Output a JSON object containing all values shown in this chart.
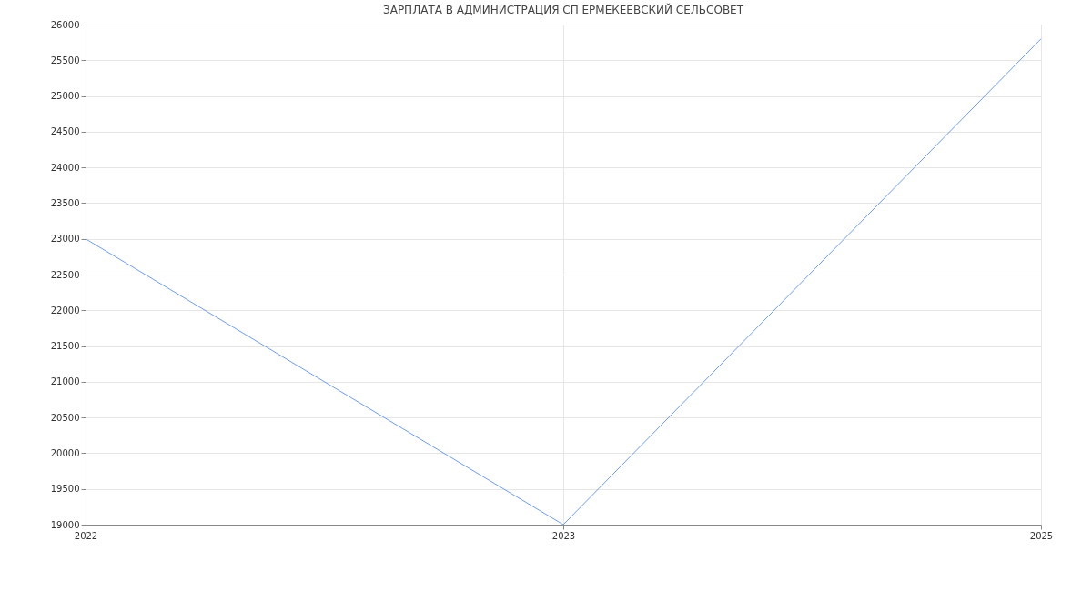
{
  "chart_data": {
    "type": "line",
    "title": "ЗАРПЛАТА В АДМИНИСТРАЦИЯ СП ЕРМЕКЕЕВСКИЙ СЕЛЬСОВЕТ",
    "categories": [
      "2022",
      "2023",
      "2025"
    ],
    "series": [
      {
        "color": "#6d9eeb",
        "values": [
          23000,
          19000,
          25800
        ]
      }
    ],
    "ylim": [
      19000,
      26000
    ],
    "yticks": [
      19000,
      19500,
      20000,
      20500,
      21000,
      21500,
      22000,
      22500,
      23000,
      23500,
      24000,
      24500,
      25000,
      25500,
      26000
    ],
    "grid": true,
    "marker": "none",
    "line_style": "solid"
  }
}
